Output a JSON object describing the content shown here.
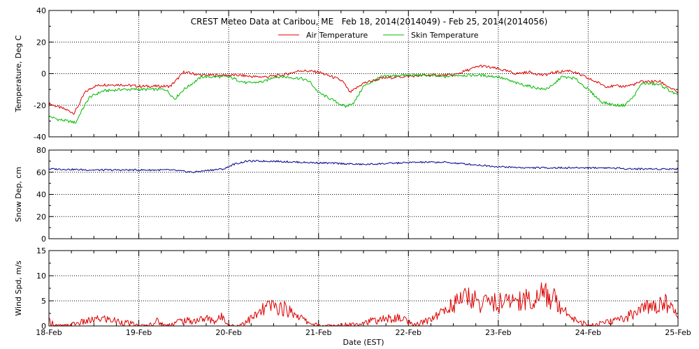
{
  "chart_data": {
    "type": "line",
    "title": "CREST Meteo Data at Caribou, ME   Feb 18, 2014(2014049) - Feb 25, 2014(2014056)",
    "xlabel": "Date (EST)",
    "x_ticks": [
      "18-Feb",
      "19-Feb",
      "20-Feb",
      "21-Feb",
      "22-Feb",
      "23-Feb",
      "24-Feb",
      "25-Feb"
    ],
    "xlim": [
      0,
      7
    ],
    "x_unit": "days from 18-Feb",
    "grid": true,
    "legend_position": "top-center",
    "panels": [
      {
        "ylabel": "Temperature, Deg C",
        "ylim": [
          -40,
          40
        ],
        "yticks": [
          "-40",
          "-20",
          "0",
          "20",
          "40"
        ],
        "series": [
          {
            "name": "Air Temperature",
            "color": "#dd0000",
            "x": [
              0,
              0.1,
              0.2,
              0.28,
              0.33,
              0.4,
              0.5,
              0.6,
              0.8,
              1.0,
              1.2,
              1.35,
              1.42,
              1.5,
              1.7,
              1.9,
              2.1,
              2.3,
              2.4,
              2.6,
              2.8,
              3.0,
              3.2,
              3.27,
              3.35,
              3.5,
              3.7,
              3.9,
              4.2,
              4.35,
              4.5,
              4.65,
              4.8,
              5.0,
              5.2,
              5.35,
              5.5,
              5.65,
              5.8,
              6.0,
              6.2,
              6.4,
              6.5,
              6.6,
              6.8,
              7.0
            ],
            "y": [
              -19,
              -21,
              -23,
              -25,
              -20,
              -12,
              -8,
              -7,
              -7,
              -8,
              -8,
              -8,
              -4,
              1,
              -1,
              -1,
              -1,
              -2,
              -2,
              -1,
              2,
              1,
              -3,
              -5,
              -12,
              -6,
              -3,
              -2,
              -1,
              -1,
              -1,
              2,
              5,
              3,
              0,
              1,
              -1,
              1,
              2,
              -3,
              -8,
              -8,
              -7,
              -5,
              -5,
              -12
            ]
          },
          {
            "name": "Skin Temperature",
            "color": "#00bb00",
            "x": [
              0,
              0.1,
              0.2,
              0.3,
              0.35,
              0.45,
              0.6,
              0.8,
              1.0,
              1.2,
              1.3,
              1.4,
              1.5,
              1.7,
              1.9,
              2.0,
              2.2,
              2.4,
              2.5,
              2.6,
              2.8,
              2.9,
              3.0,
              3.1,
              3.2,
              3.3,
              3.4,
              3.5,
              3.7,
              3.9,
              4.2,
              4.4,
              4.5,
              4.65,
              4.8,
              5.0,
              5.2,
              5.35,
              5.5,
              5.6,
              5.7,
              5.85,
              6.0,
              6.15,
              6.3,
              6.4,
              6.5,
              6.6,
              6.8,
              7.0
            ],
            "y": [
              -27,
              -29,
              -30,
              -31,
              -25,
              -15,
              -11,
              -10,
              -10,
              -10,
              -10,
              -16,
              -10,
              -2,
              -2,
              -2,
              -6,
              -5,
              -2,
              -2,
              -3,
              -5,
              -12,
              -15,
              -18,
              -21,
              -18,
              -8,
              -2,
              -1,
              -1,
              -2,
              -1,
              -1,
              -1,
              -2,
              -6,
              -8,
              -10,
              -8,
              -2,
              -3,
              -10,
              -18,
              -20,
              -20,
              -15,
              -6,
              -7,
              -14
            ]
          }
        ]
      },
      {
        "ylabel": "Snow Dep, cm",
        "ylim": [
          0,
          80
        ],
        "yticks": [
          "0",
          "20",
          "40",
          "60",
          "80"
        ],
        "series": [
          {
            "name": "",
            "color": "#00008b",
            "x": [
              0,
              0.5,
              1.0,
              1.35,
              1.6,
              1.8,
              1.95,
              2.05,
              2.2,
              2.5,
              2.8,
              3.2,
              3.5,
              3.8,
              4.1,
              4.4,
              4.7,
              5.0,
              5.3,
              5.6,
              5.9,
              6.2,
              6.5,
              6.8,
              7.0
            ],
            "y": [
              63,
              62,
              62,
              62,
              60,
              62,
              63,
              67,
              70,
              70,
              69,
              68,
              67,
              68,
              69,
              69,
              67,
              65,
              64,
              64,
              64,
              64,
              63,
              63,
              63
            ]
          }
        ]
      },
      {
        "ylabel": "Wind Spd, m/s",
        "ylim": [
          0,
          15
        ],
        "yticks": [
          "0",
          "5",
          "10",
          "15"
        ],
        "series": [
          {
            "name": "",
            "color": "#dd0000",
            "x": [
              0,
              0.1,
              0.2,
              0.3,
              0.45,
              0.6,
              0.75,
              0.9,
              1.0,
              1.1,
              1.2,
              1.3,
              1.45,
              1.6,
              1.75,
              1.85,
              1.95,
              2.0,
              2.1,
              2.3,
              2.45,
              2.6,
              2.75,
              2.85,
              3.0,
              3.2,
              3.4,
              3.6,
              3.8,
              3.95,
              4.05,
              4.2,
              4.4,
              4.55,
              4.65,
              4.8,
              4.9,
              5.0,
              5.15,
              5.3,
              5.4,
              5.45,
              5.55,
              5.65,
              5.75,
              5.85,
              6.0,
              6.15,
              6.3,
              6.45,
              6.6,
              6.75,
              6.85,
              6.95,
              7.0
            ],
            "y": [
              1,
              0,
              0,
              0.5,
              1,
              1.5,
              1,
              0.5,
              0,
              0,
              1,
              0,
              1,
              1,
              1.5,
              1,
              2,
              0,
              0,
              2,
              4,
              3.5,
              2.5,
              1,
              0,
              0,
              0.5,
              1,
              1.5,
              1.5,
              0,
              1,
              3,
              5,
              6,
              4.5,
              5,
              4.5,
              5,
              5.5,
              4.5,
              7,
              6,
              5,
              3,
              1.5,
              0,
              0.5,
              1,
              2,
              3.5,
              4,
              5,
              3,
              2
            ]
          }
        ]
      }
    ]
  }
}
